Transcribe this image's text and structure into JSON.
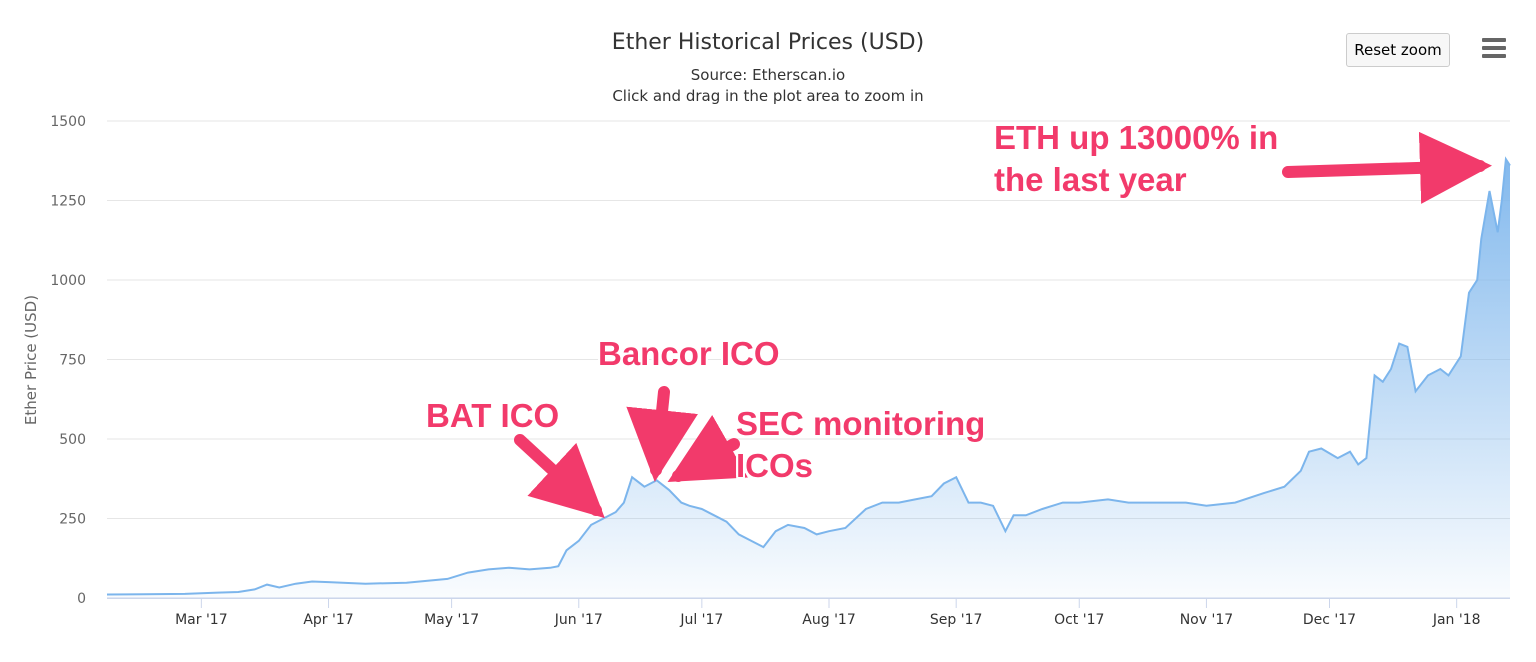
{
  "toolbar": {
    "reset_label": "Reset zoom",
    "menu_icon": "hamburger-menu-icon"
  },
  "colors": {
    "line": "#7cb5ec",
    "annotation": "#f23a6b",
    "grid": "#e6e6e6"
  },
  "annotations": {
    "bat": "BAT ICO",
    "bancor": "Bancor ICO",
    "sec_line1": "SEC monitoring",
    "sec_line2": "ICOs",
    "eth_line1": "ETH up 13000% in",
    "eth_line2": "the last year"
  },
  "chart_data": {
    "type": "area",
    "title": "Ether Historical Prices (USD)",
    "subtitle": "Source: Etherscan.io",
    "subtitle2": "Click and drag in the plot area to zoom in",
    "ylabel": "Ether Price (USD)",
    "xlabel": "",
    "ylim": [
      0,
      1500
    ],
    "yticks": [
      0,
      250,
      500,
      750,
      1000,
      1250,
      1500
    ],
    "xlim": [
      "2017-02-06",
      "2018-01-14"
    ],
    "xticks": [
      {
        "date": "2017-03-01",
        "label": "Mar '17"
      },
      {
        "date": "2017-04-01",
        "label": "Apr '17"
      },
      {
        "date": "2017-05-01",
        "label": "May '17"
      },
      {
        "date": "2017-06-01",
        "label": "Jun '17"
      },
      {
        "date": "2017-07-01",
        "label": "Jul '17"
      },
      {
        "date": "2017-08-01",
        "label": "Aug '17"
      },
      {
        "date": "2017-09-01",
        "label": "Sep '17"
      },
      {
        "date": "2017-10-01",
        "label": "Oct '17"
      },
      {
        "date": "2017-11-01",
        "label": "Nov '17"
      },
      {
        "date": "2017-12-01",
        "label": "Dec '17"
      },
      {
        "date": "2018-01-01",
        "label": "Jan '18"
      }
    ],
    "grid": true,
    "legend": "none",
    "series": [
      {
        "x": [
          "2017-02-06",
          "2017-02-15",
          "2017-02-25",
          "2017-03-05",
          "2017-03-10",
          "2017-03-14",
          "2017-03-17",
          "2017-03-20",
          "2017-03-24",
          "2017-03-28",
          "2017-04-01",
          "2017-04-10",
          "2017-04-20",
          "2017-04-30",
          "2017-05-05",
          "2017-05-10",
          "2017-05-15",
          "2017-05-20",
          "2017-05-25",
          "2017-05-27",
          "2017-05-29",
          "2017-06-01",
          "2017-06-04",
          "2017-06-07",
          "2017-06-10",
          "2017-06-12",
          "2017-06-14",
          "2017-06-17",
          "2017-06-20",
          "2017-06-23",
          "2017-06-26",
          "2017-06-28",
          "2017-07-01",
          "2017-07-04",
          "2017-07-07",
          "2017-07-10",
          "2017-07-13",
          "2017-07-16",
          "2017-07-19",
          "2017-07-22",
          "2017-07-26",
          "2017-07-29",
          "2017-08-01",
          "2017-08-05",
          "2017-08-10",
          "2017-08-14",
          "2017-08-18",
          "2017-08-22",
          "2017-08-26",
          "2017-08-29",
          "2017-09-01",
          "2017-09-04",
          "2017-09-07",
          "2017-09-10",
          "2017-09-13",
          "2017-09-15",
          "2017-09-18",
          "2017-09-22",
          "2017-09-27",
          "2017-10-01",
          "2017-10-08",
          "2017-10-13",
          "2017-10-20",
          "2017-10-27",
          "2017-11-01",
          "2017-11-08",
          "2017-11-15",
          "2017-11-20",
          "2017-11-24",
          "2017-11-26",
          "2017-11-29",
          "2017-12-03",
          "2017-12-06",
          "2017-12-08",
          "2017-12-10",
          "2017-12-12",
          "2017-12-14",
          "2017-12-16",
          "2017-12-18",
          "2017-12-20",
          "2017-12-22",
          "2017-12-25",
          "2017-12-28",
          "2017-12-30",
          "2018-01-02",
          "2018-01-04",
          "2018-01-06",
          "2018-01-07",
          "2018-01-09",
          "2018-01-11",
          "2018-01-12",
          "2018-01-13",
          "2018-01-14"
        ],
        "y": [
          11,
          12,
          13,
          17,
          19,
          27,
          42,
          33,
          45,
          52,
          50,
          45,
          48,
          60,
          80,
          90,
          95,
          90,
          95,
          100,
          150,
          180,
          230,
          250,
          270,
          300,
          380,
          350,
          370,
          340,
          300,
          290,
          280,
          260,
          240,
          200,
          180,
          160,
          210,
          230,
          220,
          200,
          210,
          220,
          280,
          300,
          300,
          310,
          320,
          360,
          380,
          300,
          300,
          290,
          210,
          260,
          260,
          280,
          300,
          300,
          310,
          300,
          300,
          300,
          290,
          300,
          330,
          350,
          400,
          460,
          470,
          440,
          460,
          420,
          440,
          700,
          680,
          720,
          800,
          790,
          650,
          700,
          720,
          700,
          760,
          960,
          1000,
          1130,
          1280,
          1150,
          1250,
          1380,
          1360
        ]
      }
    ]
  }
}
